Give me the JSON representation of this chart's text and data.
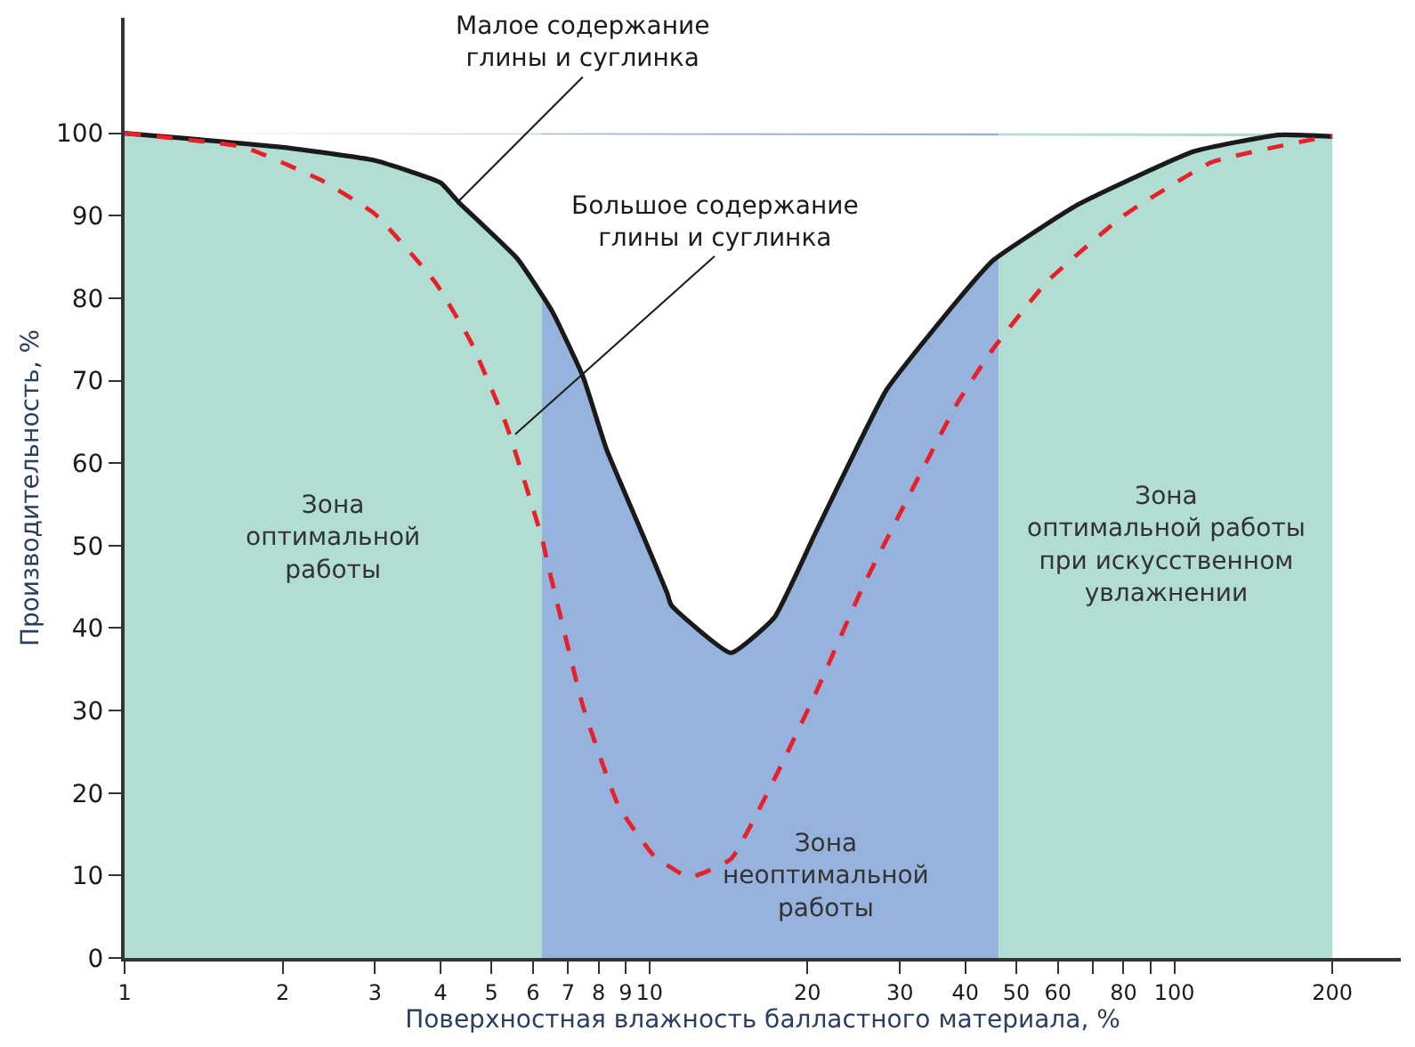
{
  "chart_data": {
    "type": "line",
    "xlabel": "Поверхностная влажность балластного материала, %",
    "ylabel": "Производительность, %",
    "log": "x",
    "grid": false,
    "marker": "none",
    "xlim": [
      1,
      270
    ],
    "ylim": [
      0,
      114
    ],
    "xticks": [
      1,
      2,
      3,
      4,
      5,
      6,
      7,
      8,
      9,
      10,
      20,
      30,
      40,
      50,
      60,
      {
        "value": 70,
        "label": null
      },
      80,
      {
        "value": 90,
        "label": null
      },
      100,
      200
    ],
    "yticks": [
      0,
      10,
      20,
      30,
      40,
      50,
      60,
      70,
      80,
      90,
      100
    ],
    "series": [
      {
        "color": "#1a1a1a",
        "line_style": "solid",
        "x": [
          1,
          2,
          3,
          4,
          4.32,
          5.6,
          6.54,
          7.48,
          8.28,
          9.46,
          10.8,
          11,
          14.3,
          17.3,
          20.7,
          28.3,
          38.7,
          45.2,
          65.3,
          109,
          158,
          200
        ],
        "values": [
          100,
          98.3,
          96.7,
          94,
          91.7,
          84.8,
          78.3,
          70.4,
          61.7,
          53,
          44.3,
          42.8,
          37,
          41.3,
          51.5,
          68.9,
          79.8,
          84.6,
          91.3,
          97.8,
          99.8,
          99.6
        ]
      },
      {
        "color": "#e8202a",
        "line_style": "dashed",
        "x": [
          1,
          1.69,
          2.37,
          3,
          3.9,
          4.56,
          5.34,
          6.24,
          6.4,
          7.48,
          8.75,
          10.2,
          11.9,
          14.3,
          17.3,
          20.7,
          25.5,
          38.7,
          45.2,
          57.2,
          80,
          118,
          185,
          200
        ],
        "values": [
          100,
          98.3,
          94.3,
          90.2,
          82,
          74.8,
          64.6,
          50.9,
          47.8,
          30.4,
          18.3,
          12.4,
          9.8,
          12,
          21.7,
          32,
          45,
          67.4,
          73.9,
          82,
          90,
          96.5,
          99.3,
          99.6
        ]
      }
    ],
    "bands": [
      {
        "axis": "x",
        "from": 1,
        "to": 6.24,
        "color": "#b2ddd3",
        "label": "Зона\nоптимальной\nработы"
      },
      {
        "axis": "x",
        "from": 6.24,
        "to": 46.3,
        "color": "#95b3dc",
        "label": "Зона\nнеоптимальной\nработы"
      },
      {
        "axis": "x",
        "from": 46.3,
        "to": 200,
        "color": "#b2ddd3",
        "label": "Зона\nоптимальной работы\nпри искусственном\nувлажнении"
      }
    ],
    "annotations": [
      {
        "text": "Малое содержание\nглины и суглинка",
        "x": 4.32,
        "y": 91.7
      },
      {
        "text": "Большое содержание\nглины и суглинка",
        "x": 5.55,
        "y": 63.5
      }
    ]
  }
}
